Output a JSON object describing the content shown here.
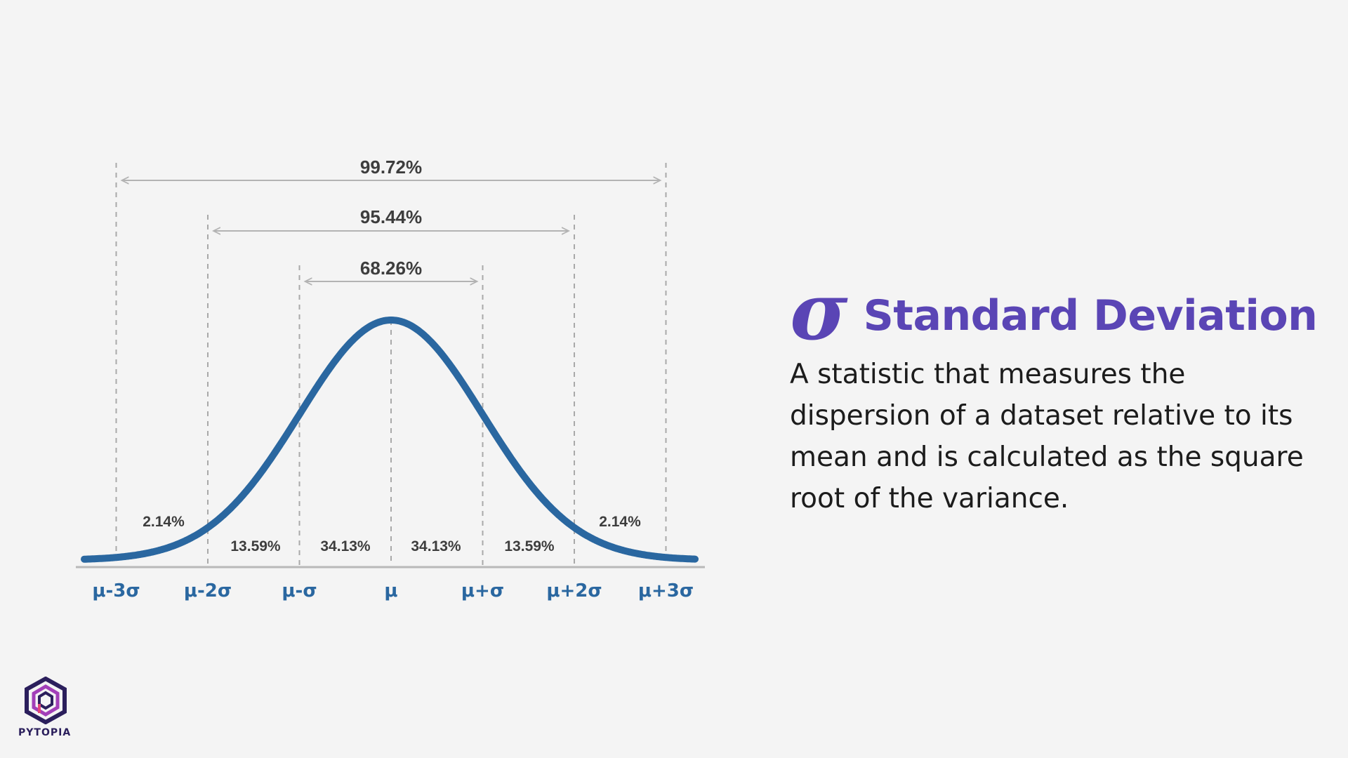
{
  "diagram": {
    "spans": [
      {
        "label": "99.72%"
      },
      {
        "label": "95.44%"
      },
      {
        "label": "68.26%"
      }
    ],
    "bands": [
      "2.14%",
      "13.59%",
      "34.13%",
      "34.13%",
      "13.59%",
      "2.14%"
    ],
    "ticks": [
      "μ-3σ",
      "μ-2σ",
      "μ-σ",
      "μ",
      "μ+σ",
      "μ+2σ",
      "μ+3σ"
    ],
    "colors": {
      "curve": "#2a67a0",
      "guides": "#a9a9a9",
      "arrows": "#b3b3b3",
      "baseline": "#b9b9b9"
    }
  },
  "title": {
    "icon": "σ",
    "text": "Standard Deviation",
    "color": "#5a45b5"
  },
  "description": "A statistic that measures the dispersion of a dataset relative to its mean and is calculated as the square root of the variance.",
  "logo": {
    "icon": "pytopia-hexagon-icon",
    "text": "PYTOPIA"
  }
}
